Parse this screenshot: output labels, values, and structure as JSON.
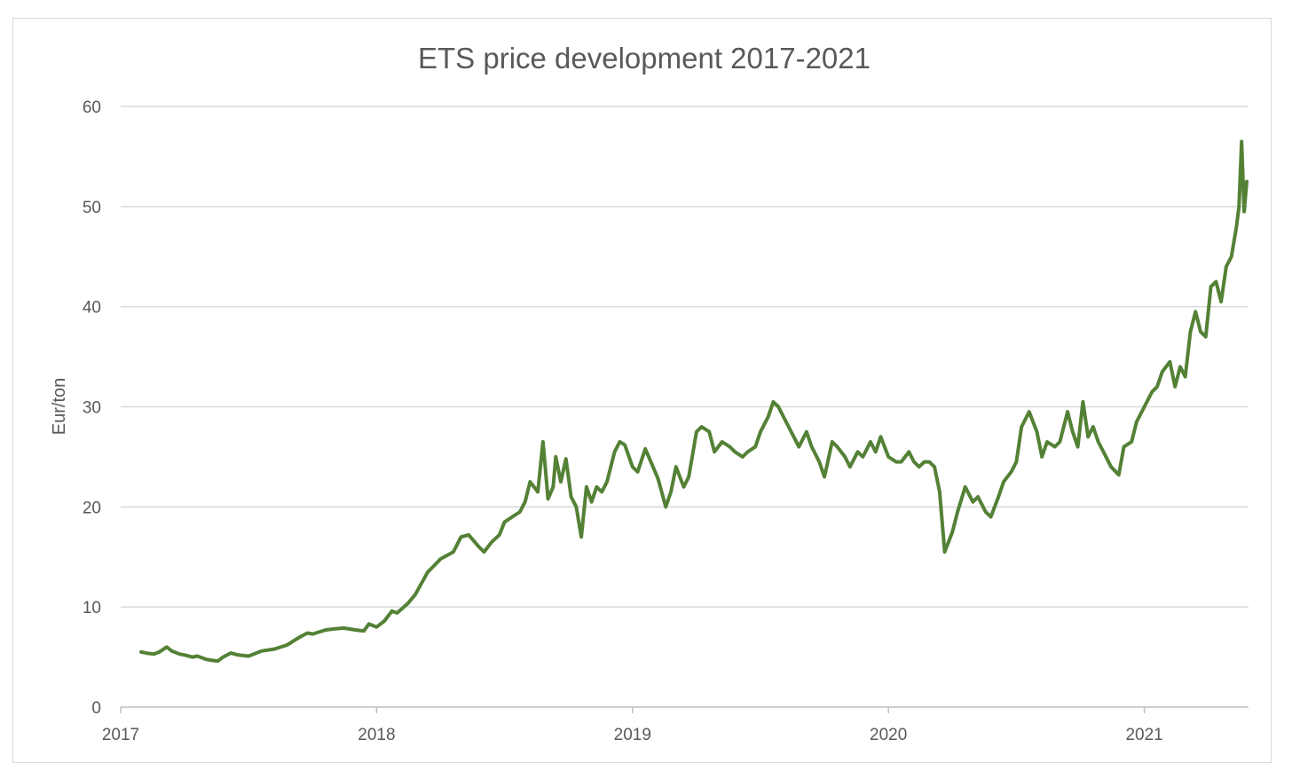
{
  "chart_data": {
    "type": "line",
    "title": "ETS price development 2017-2021",
    "xlabel": "",
    "ylabel": "Eur/ton",
    "xlim": [
      2017.0,
      2021.4
    ],
    "ylim": [
      0,
      60
    ],
    "y_ticks": [
      0,
      10,
      20,
      30,
      40,
      50,
      60
    ],
    "y_tick_labels": [
      "0",
      "10",
      "20",
      "30",
      "40",
      "50",
      "60"
    ],
    "x_ticks": [
      2017,
      2018,
      2019,
      2020,
      2021
    ],
    "x_tick_labels": [
      "2017",
      "2018",
      "2019",
      "2020",
      "2021"
    ],
    "grid": "horizontal",
    "legend": "none",
    "line_color": "#538135",
    "series": [
      {
        "name": "ETS price",
        "x": [
          2017.08,
          2017.1,
          2017.13,
          2017.15,
          2017.18,
          2017.2,
          2017.23,
          2017.25,
          2017.28,
          2017.3,
          2017.33,
          2017.35,
          2017.38,
          2017.4,
          2017.43,
          2017.46,
          2017.5,
          2017.55,
          2017.6,
          2017.65,
          2017.7,
          2017.73,
          2017.75,
          2017.8,
          2017.83,
          2017.87,
          2017.92,
          2017.95,
          2017.97,
          2018.0,
          2018.03,
          2018.06,
          2018.08,
          2018.12,
          2018.15,
          2018.2,
          2018.22,
          2018.25,
          2018.3,
          2018.33,
          2018.36,
          2018.4,
          2018.42,
          2018.45,
          2018.48,
          2018.5,
          2018.53,
          2018.56,
          2018.58,
          2018.6,
          2018.63,
          2018.65,
          2018.67,
          2018.69,
          2018.7,
          2018.72,
          2018.74,
          2018.76,
          2018.78,
          2018.8,
          2018.82,
          2018.84,
          2018.86,
          2018.88,
          2018.9,
          2018.93,
          2018.95,
          2018.97,
          2019.0,
          2019.02,
          2019.05,
          2019.08,
          2019.1,
          2019.13,
          2019.15,
          2019.17,
          2019.2,
          2019.22,
          2019.25,
          2019.27,
          2019.3,
          2019.32,
          2019.35,
          2019.38,
          2019.4,
          2019.43,
          2019.45,
          2019.48,
          2019.5,
          2019.53,
          2019.55,
          2019.57,
          2019.6,
          2019.63,
          2019.65,
          2019.68,
          2019.7,
          2019.73,
          2019.75,
          2019.78,
          2019.8,
          2019.83,
          2019.85,
          2019.88,
          2019.9,
          2019.93,
          2019.95,
          2019.97,
          2020.0,
          2020.03,
          2020.05,
          2020.08,
          2020.1,
          2020.12,
          2020.14,
          2020.16,
          2020.18,
          2020.2,
          2020.22,
          2020.25,
          2020.27,
          2020.3,
          2020.33,
          2020.35,
          2020.38,
          2020.4,
          2020.43,
          2020.45,
          2020.48,
          2020.5,
          2020.52,
          2020.55,
          2020.58,
          2020.6,
          2020.62,
          2020.65,
          2020.67,
          2020.7,
          2020.72,
          2020.74,
          2020.76,
          2020.78,
          2020.8,
          2020.82,
          2020.84,
          2020.87,
          2020.9,
          2020.92,
          2020.95,
          2020.97,
          2021.0,
          2021.03,
          2021.05,
          2021.07,
          2021.1,
          2021.12,
          2021.14,
          2021.16,
          2021.18,
          2021.2,
          2021.22,
          2021.24,
          2021.26,
          2021.28,
          2021.3,
          2021.32,
          2021.34,
          2021.36,
          2021.37,
          2021.38,
          2021.39,
          2021.4
        ],
        "values": [
          5.5,
          5.4,
          5.3,
          5.5,
          6.0,
          5.6,
          5.3,
          5.2,
          5.0,
          5.1,
          4.8,
          4.7,
          4.6,
          5.0,
          5.4,
          5.2,
          5.1,
          5.6,
          5.8,
          6.2,
          7.0,
          7.4,
          7.3,
          7.7,
          7.8,
          7.9,
          7.7,
          7.6,
          8.3,
          8.0,
          8.6,
          9.6,
          9.4,
          10.3,
          11.2,
          13.5,
          14.0,
          14.8,
          15.5,
          17.0,
          17.2,
          16.0,
          15.5,
          16.5,
          17.2,
          18.5,
          19.0,
          19.5,
          20.5,
          22.5,
          21.5,
          26.5,
          20.8,
          22.0,
          25.0,
          22.5,
          24.8,
          21.0,
          20.0,
          17.0,
          22.0,
          20.5,
          22.0,
          21.5,
          22.5,
          25.5,
          26.5,
          26.2,
          24.0,
          23.5,
          25.8,
          24.0,
          22.8,
          20.0,
          21.5,
          24.0,
          22.0,
          23.0,
          27.5,
          28.0,
          27.5,
          25.5,
          26.5,
          26.0,
          25.5,
          25.0,
          25.5,
          26.0,
          27.5,
          29.0,
          30.5,
          30.0,
          28.5,
          27.0,
          26.0,
          27.5,
          26.0,
          24.5,
          23.0,
          26.5,
          26.0,
          25.0,
          24.0,
          25.5,
          25.0,
          26.5,
          25.5,
          27.0,
          25.0,
          24.5,
          24.5,
          25.5,
          24.5,
          24.0,
          24.5,
          24.5,
          24.0,
          21.5,
          15.5,
          17.5,
          19.5,
          22.0,
          20.5,
          21.0,
          19.5,
          19.0,
          21.0,
          22.5,
          23.5,
          24.5,
          28.0,
          29.5,
          27.5,
          25.0,
          26.5,
          26.0,
          26.5,
          29.5,
          27.5,
          26.0,
          30.5,
          27.0,
          28.0,
          26.5,
          25.5,
          24.0,
          23.2,
          26.0,
          26.5,
          28.5,
          30.0,
          31.5,
          32.0,
          33.5,
          34.5,
          32.0,
          34.0,
          33.0,
          37.5,
          39.5,
          37.5,
          37.0,
          42.0,
          42.5,
          40.5,
          44.0,
          45.0,
          48.0,
          50.0,
          56.5,
          49.5,
          52.5
        ]
      }
    ]
  }
}
